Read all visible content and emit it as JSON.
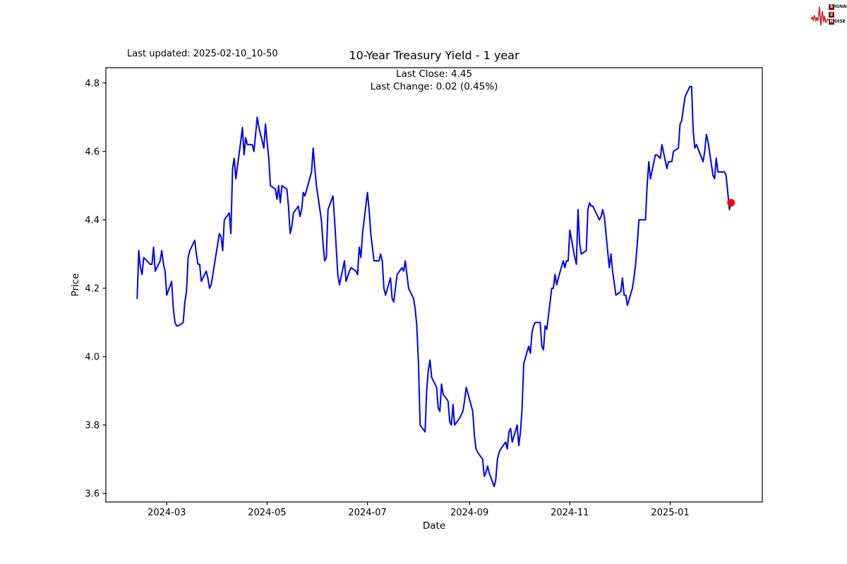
{
  "page": {
    "background": "#ffffff"
  },
  "header": {
    "last_updated": "Last updated: 2025-02-10_10-50",
    "logo": {
      "waveform_icon": "seismograph-wave-icon",
      "waveform_color": "#c42222",
      "badge_color": "#7d1616",
      "rows": [
        {
          "badge": "S",
          "rest": "IGNAL"
        },
        {
          "badge": "2",
          "rest": ""
        },
        {
          "badge": "N",
          "rest": "OISE"
        }
      ]
    }
  },
  "chart_data": {
    "type": "line",
    "title": "10-Year Treasury Yield - 1 year",
    "subtitle_lines": [
      "Last Close: 4.45",
      "Last Change: 0.02 (0.45%)"
    ],
    "xlabel": "Date",
    "ylabel": "Price",
    "grid": false,
    "legend": null,
    "line_color": "#0000ee",
    "line_width": 2,
    "marker_color": "#ff0000",
    "axis_color": "#000000",
    "x_axis": {
      "range": [
        "2024-01-24",
        "2025-02-26"
      ],
      "ticks": [
        {
          "label": "2024-03",
          "date": "2024-03-01"
        },
        {
          "label": "2024-05",
          "date": "2024-05-01"
        },
        {
          "label": "2024-07",
          "date": "2024-07-01"
        },
        {
          "label": "2024-09",
          "date": "2024-09-01"
        },
        {
          "label": "2024-11",
          "date": "2024-11-01"
        },
        {
          "label": "2025-01",
          "date": "2025-01-01"
        }
      ]
    },
    "y_axis": {
      "range": [
        3.575,
        4.845
      ],
      "ticks": [
        3.6,
        3.8,
        4.0,
        4.2,
        4.4,
        4.6,
        4.8
      ]
    },
    "last_point": {
      "date": "2025-02-07",
      "value": 4.45
    },
    "series": [
      {
        "name": "10-Year Treasury Yield",
        "points": [
          [
            "2024-02-12",
            4.17
          ],
          [
            "2024-02-13",
            4.31
          ],
          [
            "2024-02-14",
            4.26
          ],
          [
            "2024-02-15",
            4.24
          ],
          [
            "2024-02-16",
            4.29
          ],
          [
            "2024-02-20",
            4.27
          ],
          [
            "2024-02-21",
            4.27
          ],
          [
            "2024-02-22",
            4.32
          ],
          [
            "2024-02-23",
            4.25
          ],
          [
            "2024-02-26",
            4.28
          ],
          [
            "2024-02-27",
            4.31
          ],
          [
            "2024-02-28",
            4.27
          ],
          [
            "2024-02-29",
            4.25
          ],
          [
            "2024-03-01",
            4.18
          ],
          [
            "2024-03-04",
            4.22
          ],
          [
            "2024-03-05",
            4.14
          ],
          [
            "2024-03-06",
            4.1
          ],
          [
            "2024-03-07",
            4.09
          ],
          [
            "2024-03-08",
            4.09
          ],
          [
            "2024-03-11",
            4.1
          ],
          [
            "2024-03-12",
            4.16
          ],
          [
            "2024-03-13",
            4.19
          ],
          [
            "2024-03-14",
            4.29
          ],
          [
            "2024-03-15",
            4.31
          ],
          [
            "2024-03-18",
            4.34
          ],
          [
            "2024-03-19",
            4.3
          ],
          [
            "2024-03-20",
            4.27
          ],
          [
            "2024-03-21",
            4.27
          ],
          [
            "2024-03-22",
            4.22
          ],
          [
            "2024-03-25",
            4.25
          ],
          [
            "2024-03-26",
            4.23
          ],
          [
            "2024-03-27",
            4.2
          ],
          [
            "2024-03-28",
            4.21
          ],
          [
            "2024-04-01",
            4.33
          ],
          [
            "2024-04-02",
            4.36
          ],
          [
            "2024-04-03",
            4.35
          ],
          [
            "2024-04-04",
            4.31
          ],
          [
            "2024-04-05",
            4.4
          ],
          [
            "2024-04-08",
            4.42
          ],
          [
            "2024-04-09",
            4.36
          ],
          [
            "2024-04-10",
            4.55
          ],
          [
            "2024-04-11",
            4.58
          ],
          [
            "2024-04-12",
            4.52
          ],
          [
            "2024-04-15",
            4.63
          ],
          [
            "2024-04-16",
            4.67
          ],
          [
            "2024-04-17",
            4.59
          ],
          [
            "2024-04-18",
            4.64
          ],
          [
            "2024-04-19",
            4.62
          ],
          [
            "2024-04-22",
            4.62
          ],
          [
            "2024-04-23",
            4.6
          ],
          [
            "2024-04-24",
            4.65
          ],
          [
            "2024-04-25",
            4.7
          ],
          [
            "2024-04-26",
            4.67
          ],
          [
            "2024-04-29",
            4.61
          ],
          [
            "2024-04-30",
            4.68
          ],
          [
            "2024-05-01",
            4.63
          ],
          [
            "2024-05-02",
            4.58
          ],
          [
            "2024-05-03",
            4.5
          ],
          [
            "2024-05-06",
            4.49
          ],
          [
            "2024-05-07",
            4.46
          ],
          [
            "2024-05-08",
            4.5
          ],
          [
            "2024-05-09",
            4.45
          ],
          [
            "2024-05-10",
            4.5
          ],
          [
            "2024-05-13",
            4.49
          ],
          [
            "2024-05-14",
            4.44
          ],
          [
            "2024-05-15",
            4.36
          ],
          [
            "2024-05-16",
            4.38
          ],
          [
            "2024-05-17",
            4.42
          ],
          [
            "2024-05-20",
            4.44
          ],
          [
            "2024-05-21",
            4.41
          ],
          [
            "2024-05-22",
            4.43
          ],
          [
            "2024-05-23",
            4.48
          ],
          [
            "2024-05-24",
            4.47
          ],
          [
            "2024-05-28",
            4.54
          ],
          [
            "2024-05-29",
            4.61
          ],
          [
            "2024-05-30",
            4.55
          ],
          [
            "2024-05-31",
            4.5
          ],
          [
            "2024-06-03",
            4.4
          ],
          [
            "2024-06-04",
            4.33
          ],
          [
            "2024-06-05",
            4.28
          ],
          [
            "2024-06-06",
            4.29
          ],
          [
            "2024-06-07",
            4.43
          ],
          [
            "2024-06-10",
            4.47
          ],
          [
            "2024-06-11",
            4.4
          ],
          [
            "2024-06-12",
            4.32
          ],
          [
            "2024-06-13",
            4.24
          ],
          [
            "2024-06-14",
            4.21
          ],
          [
            "2024-06-17",
            4.28
          ],
          [
            "2024-06-18",
            4.22
          ],
          [
            "2024-06-20",
            4.25
          ],
          [
            "2024-06-21",
            4.26
          ],
          [
            "2024-06-24",
            4.25
          ],
          [
            "2024-06-25",
            4.24
          ],
          [
            "2024-06-26",
            4.32
          ],
          [
            "2024-06-27",
            4.29
          ],
          [
            "2024-06-28",
            4.36
          ],
          [
            "2024-07-01",
            4.48
          ],
          [
            "2024-07-02",
            4.43
          ],
          [
            "2024-07-03",
            4.36
          ],
          [
            "2024-07-05",
            4.28
          ],
          [
            "2024-07-08",
            4.28
          ],
          [
            "2024-07-09",
            4.3
          ],
          [
            "2024-07-10",
            4.28
          ],
          [
            "2024-07-11",
            4.2
          ],
          [
            "2024-07-12",
            4.18
          ],
          [
            "2024-07-15",
            4.23
          ],
          [
            "2024-07-16",
            4.17
          ],
          [
            "2024-07-17",
            4.16
          ],
          [
            "2024-07-18",
            4.2
          ],
          [
            "2024-07-19",
            4.24
          ],
          [
            "2024-07-22",
            4.26
          ],
          [
            "2024-07-23",
            4.25
          ],
          [
            "2024-07-24",
            4.28
          ],
          [
            "2024-07-25",
            4.24
          ],
          [
            "2024-07-26",
            4.2
          ],
          [
            "2024-07-29",
            4.17
          ],
          [
            "2024-07-30",
            4.14
          ],
          [
            "2024-07-31",
            4.09
          ],
          [
            "2024-08-01",
            3.98
          ],
          [
            "2024-08-02",
            3.8
          ],
          [
            "2024-08-05",
            3.78
          ],
          [
            "2024-08-06",
            3.9
          ],
          [
            "2024-08-07",
            3.96
          ],
          [
            "2024-08-08",
            3.99
          ],
          [
            "2024-08-09",
            3.94
          ],
          [
            "2024-08-12",
            3.91
          ],
          [
            "2024-08-13",
            3.85
          ],
          [
            "2024-08-14",
            3.84
          ],
          [
            "2024-08-15",
            3.92
          ],
          [
            "2024-08-16",
            3.89
          ],
          [
            "2024-08-19",
            3.87
          ],
          [
            "2024-08-20",
            3.81
          ],
          [
            "2024-08-21",
            3.8
          ],
          [
            "2024-08-22",
            3.86
          ],
          [
            "2024-08-23",
            3.8
          ],
          [
            "2024-08-26",
            3.82
          ],
          [
            "2024-08-27",
            3.83
          ],
          [
            "2024-08-28",
            3.84
          ],
          [
            "2024-08-29",
            3.87
          ],
          [
            "2024-08-30",
            3.91
          ],
          [
            "2024-09-03",
            3.84
          ],
          [
            "2024-09-04",
            3.77
          ],
          [
            "2024-09-05",
            3.73
          ],
          [
            "2024-09-06",
            3.72
          ],
          [
            "2024-09-09",
            3.7
          ],
          [
            "2024-09-10",
            3.65
          ],
          [
            "2024-09-11",
            3.66
          ],
          [
            "2024-09-12",
            3.68
          ],
          [
            "2024-09-13",
            3.66
          ],
          [
            "2024-09-16",
            3.62
          ],
          [
            "2024-09-17",
            3.64
          ],
          [
            "2024-09-18",
            3.7
          ],
          [
            "2024-09-19",
            3.72
          ],
          [
            "2024-09-20",
            3.73
          ],
          [
            "2024-09-23",
            3.75
          ],
          [
            "2024-09-24",
            3.73
          ],
          [
            "2024-09-25",
            3.78
          ],
          [
            "2024-09-26",
            3.79
          ],
          [
            "2024-09-27",
            3.75
          ],
          [
            "2024-09-30",
            3.8
          ],
          [
            "2024-10-01",
            3.74
          ],
          [
            "2024-10-02",
            3.78
          ],
          [
            "2024-10-03",
            3.85
          ],
          [
            "2024-10-04",
            3.98
          ],
          [
            "2024-10-07",
            4.03
          ],
          [
            "2024-10-08",
            4.01
          ],
          [
            "2024-10-09",
            4.07
          ],
          [
            "2024-10-10",
            4.09
          ],
          [
            "2024-10-11",
            4.1
          ],
          [
            "2024-10-14",
            4.1
          ],
          [
            "2024-10-15",
            4.03
          ],
          [
            "2024-10-16",
            4.02
          ],
          [
            "2024-10-17",
            4.09
          ],
          [
            "2024-10-18",
            4.08
          ],
          [
            "2024-10-21",
            4.2
          ],
          [
            "2024-10-22",
            4.2
          ],
          [
            "2024-10-23",
            4.24
          ],
          [
            "2024-10-24",
            4.21
          ],
          [
            "2024-10-25",
            4.23
          ],
          [
            "2024-10-28",
            4.28
          ],
          [
            "2024-10-29",
            4.26
          ],
          [
            "2024-10-30",
            4.28
          ],
          [
            "2024-10-31",
            4.28
          ],
          [
            "2024-11-01",
            4.37
          ],
          [
            "2024-11-04",
            4.29
          ],
          [
            "2024-11-05",
            4.27
          ],
          [
            "2024-11-06",
            4.43
          ],
          [
            "2024-11-07",
            4.33
          ],
          [
            "2024-11-08",
            4.3
          ],
          [
            "2024-11-11",
            4.31
          ],
          [
            "2024-11-12",
            4.43
          ],
          [
            "2024-11-13",
            4.45
          ],
          [
            "2024-11-14",
            4.44
          ],
          [
            "2024-11-15",
            4.44
          ],
          [
            "2024-11-18",
            4.41
          ],
          [
            "2024-11-19",
            4.4
          ],
          [
            "2024-11-20",
            4.41
          ],
          [
            "2024-11-21",
            4.43
          ],
          [
            "2024-11-22",
            4.41
          ],
          [
            "2024-11-25",
            4.26
          ],
          [
            "2024-11-26",
            4.3
          ],
          [
            "2024-11-27",
            4.25
          ],
          [
            "2024-11-29",
            4.18
          ],
          [
            "2024-12-02",
            4.19
          ],
          [
            "2024-12-03",
            4.23
          ],
          [
            "2024-12-04",
            4.18
          ],
          [
            "2024-12-05",
            4.18
          ],
          [
            "2024-12-06",
            4.15
          ],
          [
            "2024-12-09",
            4.2
          ],
          [
            "2024-12-10",
            4.23
          ],
          [
            "2024-12-11",
            4.27
          ],
          [
            "2024-12-12",
            4.33
          ],
          [
            "2024-12-13",
            4.4
          ],
          [
            "2024-12-16",
            4.4
          ],
          [
            "2024-12-17",
            4.4
          ],
          [
            "2024-12-18",
            4.5
          ],
          [
            "2024-12-19",
            4.57
          ],
          [
            "2024-12-20",
            4.52
          ],
          [
            "2024-12-23",
            4.59
          ],
          [
            "2024-12-24",
            4.59
          ],
          [
            "2024-12-26",
            4.58
          ],
          [
            "2024-12-27",
            4.62
          ],
          [
            "2024-12-30",
            4.55
          ],
          [
            "2024-12-31",
            4.57
          ],
          [
            "2025-01-02",
            4.57
          ],
          [
            "2025-01-03",
            4.6
          ],
          [
            "2025-01-06",
            4.61
          ],
          [
            "2025-01-07",
            4.68
          ],
          [
            "2025-01-08",
            4.69
          ],
          [
            "2025-01-10",
            4.76
          ],
          [
            "2025-01-13",
            4.79
          ],
          [
            "2025-01-14",
            4.79
          ],
          [
            "2025-01-15",
            4.66
          ],
          [
            "2025-01-16",
            4.61
          ],
          [
            "2025-01-17",
            4.62
          ],
          [
            "2025-01-21",
            4.57
          ],
          [
            "2025-01-22",
            4.6
          ],
          [
            "2025-01-23",
            4.65
          ],
          [
            "2025-01-24",
            4.63
          ],
          [
            "2025-01-27",
            4.53
          ],
          [
            "2025-01-28",
            4.52
          ],
          [
            "2025-01-29",
            4.58
          ],
          [
            "2025-01-30",
            4.54
          ],
          [
            "2025-01-31",
            4.54
          ],
          [
            "2025-02-03",
            4.54
          ],
          [
            "2025-02-04",
            4.53
          ],
          [
            "2025-02-05",
            4.48
          ],
          [
            "2025-02-06",
            4.43
          ],
          [
            "2025-02-07",
            4.45
          ]
        ]
      }
    ]
  }
}
